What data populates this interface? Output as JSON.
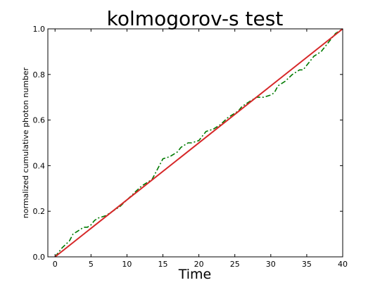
{
  "chart_data": {
    "type": "line",
    "title": "kolmogorov-s test",
    "xlabel": "Time",
    "ylabel": "normalized cumulative photon number",
    "xlim": [
      -1,
      40
    ],
    "ylim": [
      0.0,
      1.0
    ],
    "xticks": [
      0,
      5,
      10,
      15,
      20,
      25,
      30,
      35,
      40
    ],
    "yticks": [
      0.0,
      0.2,
      0.4,
      0.6,
      0.8,
      1.0
    ],
    "xtick_labels": [
      "0",
      "5",
      "10",
      "15",
      "20",
      "25",
      "30",
      "35",
      "40"
    ],
    "ytick_labels": [
      "0.0",
      "0.2",
      "0.4",
      "0.6",
      "0.8",
      "1.0"
    ],
    "grid": false,
    "series": [
      {
        "style": "dashed",
        "color": "#007a00",
        "x": [
          0,
          0.5,
          1.0,
          2.0,
          2.5,
          3.0,
          3.5,
          4.0,
          4.5,
          5.0,
          5.5,
          6.0,
          7.0,
          8.0,
          9.0,
          10.0,
          11.0,
          12.0,
          13.0,
          13.5,
          14.0,
          14.5,
          15.0,
          16.0,
          17.0,
          17.5,
          18.0,
          18.5,
          19.0,
          20.0,
          20.5,
          21.0,
          22.0,
          23.0,
          24.0,
          25.0,
          25.5,
          26.0,
          27.0,
          28.0,
          29.0,
          30.0,
          30.5,
          31.0,
          32.0,
          33.0,
          34.0,
          34.5,
          35.0,
          35.5,
          36.0,
          37.0,
          38.0,
          39.0,
          40.0
        ],
        "y": [
          0.0,
          0.02,
          0.04,
          0.07,
          0.1,
          0.11,
          0.12,
          0.13,
          0.13,
          0.14,
          0.16,
          0.17,
          0.18,
          0.2,
          0.22,
          0.25,
          0.28,
          0.31,
          0.33,
          0.34,
          0.37,
          0.4,
          0.43,
          0.44,
          0.46,
          0.48,
          0.49,
          0.5,
          0.5,
          0.51,
          0.53,
          0.55,
          0.56,
          0.58,
          0.61,
          0.63,
          0.64,
          0.66,
          0.68,
          0.7,
          0.7,
          0.71,
          0.72,
          0.75,
          0.77,
          0.8,
          0.82,
          0.82,
          0.84,
          0.86,
          0.88,
          0.9,
          0.94,
          0.98,
          1.0
        ]
      },
      {
        "style": "solid",
        "color": "#d62728",
        "x": [
          0,
          40
        ],
        "y": [
          0.0,
          1.0
        ]
      }
    ]
  }
}
